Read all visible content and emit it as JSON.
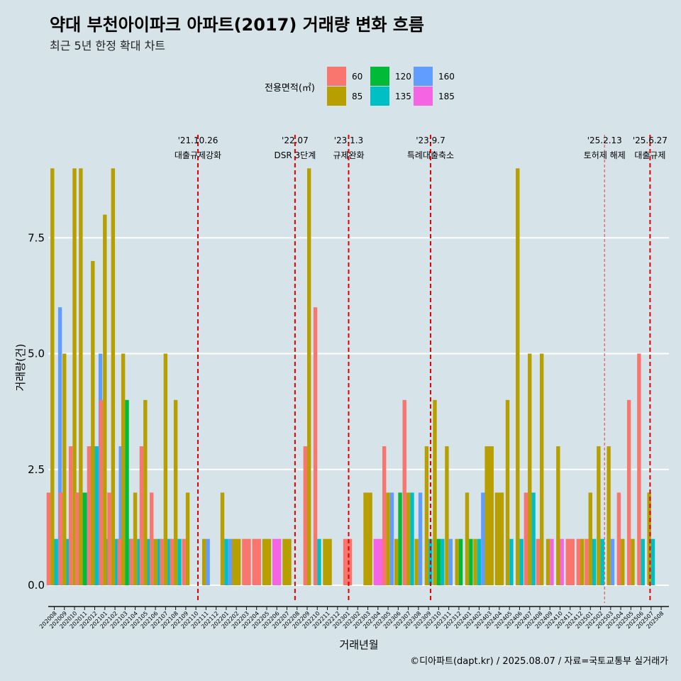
{
  "chart_data": {
    "type": "bar",
    "title": "약대 부천아이파크 아파트(2017) 거래량 변화 흐름",
    "subtitle": "최근 5년 한정 확대 차트",
    "xlabel": "거래년월",
    "ylabel": "거래량(건)",
    "ylim": [
      -0.4,
      9.1
    ],
    "yticks": [
      0.0,
      2.5,
      5.0,
      7.5
    ],
    "ytick_labels": [
      "0.0",
      "2.5",
      "5.0",
      "7.5"
    ],
    "caption": "©디아파트(dapt.kr) / 2025.08.07 / 자료=국토교통부 실거래가",
    "legend": {
      "title": "전용면적(㎡)",
      "position": "top",
      "items": [
        {
          "label": "60",
          "color": "#F8766D"
        },
        {
          "label": "85",
          "color": "#B79F00"
        },
        {
          "label": "120",
          "color": "#00BA38"
        },
        {
          "label": "135",
          "color": "#00BFC4"
        },
        {
          "label": "160",
          "color": "#619CFF"
        },
        {
          "label": "185",
          "color": "#F564E3"
        }
      ]
    },
    "categories": [
      "202008",
      "202009",
      "202010",
      "202011",
      "202012",
      "202101",
      "202102",
      "202103",
      "202104",
      "202105",
      "202106",
      "202107",
      "202108",
      "202109",
      "202110",
      "202111",
      "202112",
      "202201",
      "202202",
      "202203",
      "202204",
      "202205",
      "202206",
      "202207",
      "202208",
      "202209",
      "202210",
      "202211",
      "202212",
      "202301",
      "202302",
      "202303",
      "202304",
      "202305",
      "202306",
      "202307",
      "202308",
      "202309",
      "202310",
      "202311",
      "202312",
      "202401",
      "202402",
      "202403",
      "202404",
      "202405",
      "202406",
      "202407",
      "202408",
      "202409",
      "202410",
      "202411",
      "202412",
      "202501",
      "202502",
      "202503",
      "202504",
      "202505",
      "202506",
      "202507",
      "202508"
    ],
    "months": [
      {
        "m": "202008",
        "d": [
          [
            "60",
            2
          ],
          [
            "85",
            9
          ],
          [
            "135",
            1
          ],
          [
            "160",
            6
          ]
        ]
      },
      {
        "m": "202009",
        "d": [
          [
            "60",
            2
          ],
          [
            "85",
            5
          ],
          [
            "135",
            1
          ]
        ]
      },
      {
        "m": "202010",
        "d": [
          [
            "60",
            3
          ],
          [
            "85",
            9
          ],
          [
            "135",
            2
          ]
        ]
      },
      {
        "m": "202011",
        "d": [
          [
            "60",
            2
          ],
          [
            "85",
            9
          ],
          [
            "120",
            2
          ],
          [
            "135",
            2
          ],
          [
            "160",
            3
          ]
        ]
      },
      {
        "m": "202012",
        "d": [
          [
            "60",
            3
          ],
          [
            "85",
            7
          ],
          [
            "135",
            3
          ],
          [
            "160",
            5
          ]
        ]
      },
      {
        "m": "202101",
        "d": [
          [
            "60",
            4
          ],
          [
            "85",
            8
          ],
          [
            "135",
            1
          ]
        ]
      },
      {
        "m": "202102",
        "d": [
          [
            "60",
            2
          ],
          [
            "85",
            9
          ],
          [
            "135",
            1
          ],
          [
            "160",
            3
          ]
        ]
      },
      {
        "m": "202103",
        "d": [
          [
            "60",
            1
          ],
          [
            "85",
            5
          ],
          [
            "120",
            4
          ],
          [
            "135",
            1
          ]
        ]
      },
      {
        "m": "202104",
        "d": [
          [
            "60",
            1
          ],
          [
            "85",
            2
          ],
          [
            "135",
            1
          ]
        ]
      },
      {
        "m": "202105",
        "d": [
          [
            "60",
            3
          ],
          [
            "85",
            4
          ],
          [
            "135",
            1
          ]
        ]
      },
      {
        "m": "202106",
        "d": [
          [
            "60",
            2
          ],
          [
            "85",
            1
          ],
          [
            "135",
            1
          ]
        ]
      },
      {
        "m": "202107",
        "d": [
          [
            "60",
            1
          ],
          [
            "85",
            5
          ],
          [
            "135",
            1
          ]
        ]
      },
      {
        "m": "202108",
        "d": [
          [
            "60",
            1
          ],
          [
            "85",
            4
          ],
          [
            "135",
            1
          ]
        ]
      },
      {
        "m": "202109",
        "d": [
          [
            "60",
            1
          ],
          [
            "85",
            2
          ]
        ]
      },
      {
        "m": "202110",
        "d": []
      },
      {
        "m": "202111",
        "d": [
          [
            "85",
            1
          ],
          [
            "160",
            1
          ]
        ]
      },
      {
        "m": "202112",
        "d": []
      },
      {
        "m": "202201",
        "d": [
          [
            "85",
            2
          ],
          [
            "135",
            1
          ],
          [
            "160",
            1
          ]
        ]
      },
      {
        "m": "202202",
        "d": [
          [
            "85",
            1
          ]
        ]
      },
      {
        "m": "202203",
        "d": [
          [
            "60",
            1
          ]
        ]
      },
      {
        "m": "202204",
        "d": [
          [
            "60",
            1
          ]
        ]
      },
      {
        "m": "202205",
        "d": [
          [
            "85",
            1
          ]
        ]
      },
      {
        "m": "202206",
        "d": [
          [
            "185",
            1
          ]
        ]
      },
      {
        "m": "202207",
        "d": [
          [
            "85",
            1
          ]
        ]
      },
      {
        "m": "202208",
        "d": []
      },
      {
        "m": "202209",
        "d": [
          [
            "60",
            3
          ],
          [
            "85",
            9
          ]
        ]
      },
      {
        "m": "202210",
        "d": [
          [
            "60",
            6
          ],
          [
            "135",
            1
          ]
        ]
      },
      {
        "m": "202211",
        "d": [
          [
            "85",
            1
          ]
        ]
      },
      {
        "m": "202212",
        "d": []
      },
      {
        "m": "202301",
        "d": [
          [
            "60",
            1
          ]
        ]
      },
      {
        "m": "202302",
        "d": []
      },
      {
        "m": "202303",
        "d": [
          [
            "85",
            2
          ]
        ]
      },
      {
        "m": "202304",
        "d": [
          [
            "185",
            1
          ]
        ]
      },
      {
        "m": "202305",
        "d": [
          [
            "60",
            3
          ],
          [
            "85",
            2
          ],
          [
            "160",
            2
          ]
        ]
      },
      {
        "m": "202306",
        "d": [
          [
            "85",
            1
          ],
          [
            "120",
            2
          ]
        ]
      },
      {
        "m": "202307",
        "d": [
          [
            "60",
            4
          ],
          [
            "85",
            2
          ],
          [
            "135",
            2
          ]
        ]
      },
      {
        "m": "202308",
        "d": [
          [
            "85",
            1
          ],
          [
            "160",
            2
          ]
        ]
      },
      {
        "m": "202309",
        "d": [
          [
            "85",
            3
          ],
          [
            "135",
            1
          ]
        ]
      },
      {
        "m": "202310",
        "d": [
          [
            "85",
            4
          ],
          [
            "120",
            1
          ],
          [
            "135",
            1
          ]
        ]
      },
      {
        "m": "202311",
        "d": [
          [
            "85",
            3
          ],
          [
            "160",
            1
          ]
        ]
      },
      {
        "m": "202312",
        "d": [
          [
            "85",
            1
          ],
          [
            "120",
            1
          ]
        ]
      },
      {
        "m": "202401",
        "d": [
          [
            "85",
            2
          ],
          [
            "120",
            1
          ]
        ]
      },
      {
        "m": "202402",
        "d": [
          [
            "85",
            1
          ],
          [
            "135",
            1
          ],
          [
            "160",
            2
          ]
        ]
      },
      {
        "m": "202403",
        "d": [
          [
            "85",
            3
          ]
        ]
      },
      {
        "m": "202404",
        "d": [
          [
            "85",
            2
          ]
        ]
      },
      {
        "m": "202405",
        "d": [
          [
            "85",
            4
          ],
          [
            "135",
            1
          ]
        ]
      },
      {
        "m": "202406",
        "d": [
          [
            "85",
            9
          ],
          [
            "135",
            1
          ]
        ]
      },
      {
        "m": "202407",
        "d": [
          [
            "60",
            2
          ],
          [
            "85",
            5
          ],
          [
            "135",
            2
          ]
        ]
      },
      {
        "m": "202408",
        "d": [
          [
            "60",
            1
          ],
          [
            "85",
            5
          ]
        ]
      },
      {
        "m": "202409",
        "d": [
          [
            "85",
            1
          ],
          [
            "185",
            1
          ]
        ]
      },
      {
        "m": "202410",
        "d": [
          [
            "85",
            3
          ],
          [
            "185",
            1
          ]
        ]
      },
      {
        "m": "202411",
        "d": [
          [
            "60",
            1
          ]
        ]
      },
      {
        "m": "202412",
        "d": [
          [
            "60",
            1
          ],
          [
            "85",
            1
          ]
        ]
      },
      {
        "m": "202501",
        "d": [
          [
            "60",
            1
          ],
          [
            "85",
            2
          ],
          [
            "135",
            1
          ]
        ]
      },
      {
        "m": "202502",
        "d": [
          [
            "85",
            3
          ],
          [
            "135",
            1
          ]
        ]
      },
      {
        "m": "202503",
        "d": [
          [
            "85",
            3
          ],
          [
            "160",
            1
          ]
        ]
      },
      {
        "m": "202504",
        "d": [
          [
            "60",
            2
          ],
          [
            "85",
            1
          ]
        ]
      },
      {
        "m": "202505",
        "d": [
          [
            "60",
            4
          ],
          [
            "85",
            1
          ]
        ]
      },
      {
        "m": "202506",
        "d": [
          [
            "60",
            5
          ],
          [
            "135",
            1
          ]
        ]
      },
      {
        "m": "202507",
        "d": [
          [
            "85",
            2
          ],
          [
            "135",
            1
          ]
        ]
      },
      {
        "m": "202508",
        "d": []
      }
    ],
    "events": [
      {
        "date": "'21.10.26",
        "label": "대출규제강화",
        "pos": 14.2,
        "style": "bold"
      },
      {
        "date": "'22.07",
        "label": "DSR 3단계",
        "pos": 23.8,
        "style": "bold"
      },
      {
        "date": "'23.1.3",
        "label": "규제완화",
        "pos": 29.1,
        "style": "bold"
      },
      {
        "date": "'23.9.7",
        "label": "특례대출축소",
        "pos": 37.2,
        "style": "bold"
      },
      {
        "date": "'25.2.13",
        "label": "토허제 해제",
        "pos": 54.4,
        "style": "light"
      },
      {
        "date": "'25.6.27",
        "label": "대출규제",
        "pos": 58.9,
        "style": "bold"
      }
    ]
  }
}
